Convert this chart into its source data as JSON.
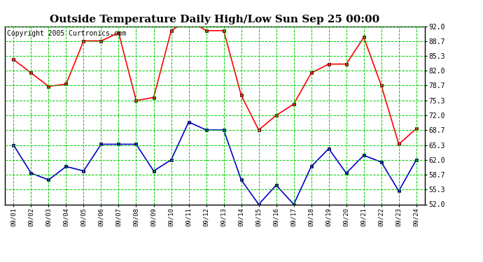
{
  "title": "Outside Temperature Daily High/Low Sun Sep 25 00:00",
  "copyright": "Copyright 2005 Curtronics.com",
  "dates": [
    "09/01",
    "09/02",
    "09/03",
    "09/04",
    "09/05",
    "09/06",
    "09/07",
    "09/08",
    "09/09",
    "09/10",
    "09/11",
    "09/12",
    "09/13",
    "09/14",
    "09/15",
    "09/16",
    "09/17",
    "09/18",
    "09/19",
    "09/20",
    "09/21",
    "09/22",
    "09/23",
    "09/24"
  ],
  "high_temps": [
    84.5,
    81.5,
    78.5,
    79.0,
    88.7,
    88.7,
    90.5,
    75.3,
    76.0,
    91.0,
    93.5,
    91.0,
    91.0,
    76.5,
    68.7,
    72.0,
    74.5,
    81.5,
    83.5,
    83.5,
    89.5,
    78.7,
    65.5,
    69.0
  ],
  "low_temps": [
    65.3,
    59.0,
    57.5,
    60.5,
    59.5,
    65.5,
    65.5,
    65.5,
    59.5,
    62.0,
    70.5,
    68.7,
    68.7,
    57.5,
    52.0,
    56.3,
    52.0,
    60.5,
    64.5,
    59.0,
    63.0,
    61.5,
    55.0,
    62.0
  ],
  "y_ticks": [
    52.0,
    55.3,
    58.7,
    62.0,
    65.3,
    68.7,
    72.0,
    75.3,
    78.7,
    82.0,
    85.3,
    88.7,
    92.0
  ],
  "y_tick_labels": [
    "52.0",
    "55.3",
    "58.7",
    "62.0",
    "65.3",
    "68.7",
    "72.0",
    "75.3",
    "78.7",
    "82.0",
    "85.3",
    "88.7",
    "92.0"
  ],
  "ylim": [
    52.0,
    92.0
  ],
  "high_color": "#ff0000",
  "low_color": "#0000cc",
  "grid_color": "#00cc00",
  "bg_color": "#ffffff",
  "plot_bg_color": "#ffffff",
  "title_fontsize": 11,
  "copyright_fontsize": 7
}
